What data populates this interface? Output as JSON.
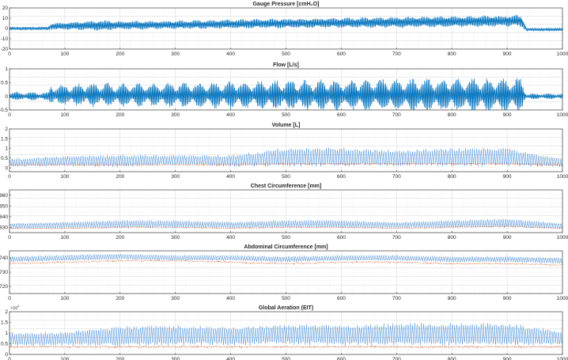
{
  "chart_data": [
    {
      "type": "line",
      "title": "Gauge Pressure [cmH₂O]",
      "xlim": [
        0,
        1000
      ],
      "ylim": [
        -20,
        20
      ],
      "x_ticks": [
        "0",
        "100",
        "200",
        "300",
        "400",
        "500",
        "600",
        "700",
        "800",
        "900",
        "1000"
      ],
      "y_ticks": [
        "20",
        "10",
        "0",
        "-10",
        "-20"
      ],
      "grid": "minor",
      "series": [
        {
          "color": "#0072bd",
          "x": [
            0,
            70,
            75,
            180,
            185,
            300,
            500,
            700,
            925,
            935,
            1000
          ],
          "y": [
            0,
            0,
            2,
            3,
            3,
            3.5,
            5,
            6,
            7.5,
            -1,
            -1
          ],
          "swing": [
            1.5,
            1.5,
            3,
            5,
            4,
            4,
            4.5,
            5,
            5.5,
            1.5,
            1.5
          ]
        }
      ]
    },
    {
      "type": "line",
      "title": "Flow [L/s]",
      "xlim": [
        0,
        1000
      ],
      "ylim": [
        -0.5,
        1
      ],
      "x_ticks": [
        "0",
        "100",
        "200",
        "300",
        "400",
        "500",
        "600",
        "700",
        "800",
        "900",
        "1000"
      ],
      "y_ticks": [
        "1",
        "0.5",
        "0",
        "-0.5"
      ],
      "grid": "minor",
      "series": [
        {
          "color": "#0072bd",
          "x": [
            0,
            70,
            75,
            180,
            185,
            300,
            500,
            700,
            925,
            935,
            1000
          ],
          "y": [
            0,
            0,
            0.05,
            0.05,
            0.05,
            0.05,
            0.05,
            0.05,
            0.05,
            0,
            0
          ],
          "swing": [
            0.12,
            0.12,
            0.3,
            0.35,
            0.32,
            0.35,
            0.42,
            0.45,
            0.48,
            0.08,
            0.08
          ]
        }
      ]
    },
    {
      "type": "line",
      "title": "Volume [L]",
      "xlim": [
        0,
        1000
      ],
      "ylim": [
        -0.2,
        2
      ],
      "x_ticks": [
        "0",
        "100",
        "200",
        "300",
        "400",
        "500",
        "600",
        "700",
        "800",
        "900",
        "1000"
      ],
      "y_ticks": [
        "2",
        "1.5",
        "1",
        "0.5",
        "0"
      ],
      "grid": "minor",
      "series": [
        {
          "color": "#4a90d9",
          "x": [
            0,
            100,
            200,
            300,
            400,
            500,
            600,
            700,
            800,
            900,
            1000
          ],
          "y": [
            0.25,
            0.35,
            0.35,
            0.4,
            0.35,
            0.55,
            0.55,
            0.5,
            0.55,
            0.55,
            0.25
          ],
          "swing": [
            0.2,
            0.25,
            0.3,
            0.25,
            0.28,
            0.45,
            0.45,
            0.4,
            0.45,
            0.45,
            0.2
          ]
        },
        {
          "color": "#d95319",
          "x": [
            0,
            100,
            200,
            300,
            400,
            500,
            600,
            700,
            800,
            900,
            1000
          ],
          "y": [
            0.15,
            0.15,
            0.15,
            0.15,
            0.15,
            0.2,
            0.2,
            0.2,
            0.2,
            0.2,
            0.15
          ],
          "swing": [
            0.02,
            0.02,
            0.02,
            0.02,
            0.02,
            0.02,
            0.02,
            0.02,
            0.02,
            0.02,
            0.02
          ]
        }
      ]
    },
    {
      "type": "line",
      "title": "Chest Circumference [mm]",
      "xlim": [
        0,
        1000
      ],
      "ylim": [
        825,
        865
      ],
      "x_ticks": [
        "0",
        "100",
        "200",
        "300",
        "400",
        "500",
        "600",
        "700",
        "800",
        "900",
        "1000"
      ],
      "y_ticks": [
        "860",
        "850",
        "840",
        "830"
      ],
      "grid": "minor",
      "series": [
        {
          "color": "#4a90d9",
          "x": [
            0,
            100,
            200,
            300,
            400,
            500,
            600,
            700,
            800,
            900,
            1000
          ],
          "y": [
            831,
            832,
            833,
            833,
            832,
            833,
            833,
            832,
            833,
            834,
            831
          ],
          "swing": [
            2.5,
            3,
            3.5,
            3.5,
            3,
            3.5,
            3.5,
            3,
            3.5,
            4,
            2.5
          ]
        },
        {
          "color": "#d95319",
          "x": [
            0,
            100,
            200,
            300,
            400,
            500,
            600,
            700,
            800,
            900,
            1000
          ],
          "y": [
            829,
            829,
            830,
            830,
            829,
            830,
            830,
            829,
            830,
            831,
            829
          ],
          "swing": [
            0.4,
            0.4,
            0.4,
            0.4,
            0.4,
            0.4,
            0.4,
            0.4,
            0.4,
            0.4,
            0.4
          ]
        }
      ]
    },
    {
      "type": "line",
      "title": "Abdominal Circumference [mm]",
      "xlim": [
        0,
        1000
      ],
      "ylim": [
        715,
        745
      ],
      "x_ticks": [
        "0",
        "100",
        "200",
        "300",
        "400",
        "500",
        "600",
        "700",
        "800",
        "900",
        "1000"
      ],
      "y_ticks": [
        "740",
        "730",
        "720"
      ],
      "grid": "minor",
      "series": [
        {
          "color": "#4a90d9",
          "x": [
            0,
            100,
            200,
            300,
            400,
            500,
            600,
            700,
            800,
            900,
            1000
          ],
          "y": [
            739,
            740,
            741,
            740,
            740,
            739,
            740,
            740,
            739,
            739,
            738
          ],
          "swing": [
            2,
            2,
            1.8,
            1.8,
            1.8,
            2,
            1.8,
            1.8,
            2,
            2,
            2
          ]
        },
        {
          "color": "#d95319",
          "x": [
            0,
            100,
            200,
            300,
            400,
            500,
            600,
            700,
            800,
            900,
            1000
          ],
          "y": [
            736,
            737,
            738,
            738,
            737,
            736,
            737,
            737,
            736,
            736,
            735
          ],
          "swing": [
            0.4,
            0.4,
            0.4,
            0.4,
            0.4,
            0.4,
            0.4,
            0.4,
            0.4,
            0.4,
            0.4
          ]
        }
      ]
    },
    {
      "type": "line",
      "title": "Global Aeration (EIT)",
      "exponent_label": "×10",
      "exponent_power": "4",
      "xlim": [
        0,
        1000
      ],
      "ylim": [
        0,
        2
      ],
      "x_ticks": [
        "0",
        "100",
        "200",
        "300",
        "400",
        "500",
        "600",
        "700",
        "800",
        "900",
        "1000"
      ],
      "y_ticks": [
        "2",
        "1.5",
        "1",
        "0.5",
        "0"
      ],
      "grid": "minor",
      "series": [
        {
          "color": "#4a90d9",
          "x": [
            0,
            100,
            200,
            300,
            400,
            500,
            600,
            700,
            800,
            900,
            1000
          ],
          "y": [
            0.7,
            0.75,
            0.85,
            0.9,
            0.85,
            0.95,
            0.9,
            0.95,
            0.95,
            0.95,
            0.75
          ],
          "swing": [
            0.3,
            0.3,
            0.45,
            0.45,
            0.4,
            0.45,
            0.45,
            0.5,
            0.5,
            0.5,
            0.3
          ]
        },
        {
          "color": "#d95319",
          "x": [
            0,
            100,
            200,
            300,
            400,
            500,
            600,
            700,
            800,
            900,
            1000
          ],
          "y": [
            0.35,
            0.35,
            0.35,
            0.35,
            0.35,
            0.35,
            0.35,
            0.35,
            0.35,
            0.35,
            0.35
          ],
          "swing": [
            0.03,
            0.03,
            0.03,
            0.03,
            0.03,
            0.03,
            0.03,
            0.03,
            0.03,
            0.03,
            0.03
          ]
        }
      ]
    }
  ]
}
